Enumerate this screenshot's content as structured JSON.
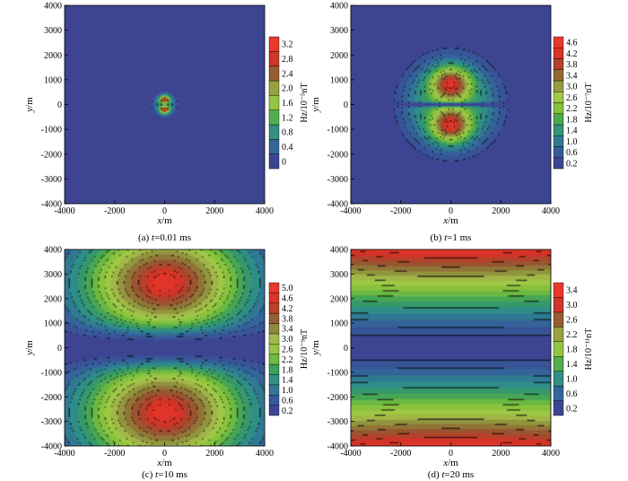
{
  "chart_data": [
    {
      "type": "heatmap",
      "panel": "a",
      "caption_prefix": "(a) ",
      "caption_var": "t",
      "caption_rest": "=0.01 ms",
      "xlabel_var": "x",
      "xlabel_unit": "/m",
      "ylabel_var": "y",
      "ylabel_unit": "/m",
      "xlim": [
        -4000,
        4000
      ],
      "ylim": [
        -4000,
        4000
      ],
      "xticks": [
        -4000,
        -2000,
        0,
        2000,
        4000
      ],
      "yticks": [
        -4000,
        -3000,
        -2000,
        -1000,
        0,
        1000,
        2000,
        3000,
        4000
      ],
      "colorbar_label": "Hz/10⁻⁵nT",
      "colorbar_ticks": [
        "0",
        "0.4",
        "0.8",
        "1.2",
        "1.6",
        "2.0",
        "2.4",
        "2.8",
        "3.2"
      ],
      "vmin": 0,
      "vmax": 3.4,
      "field": {
        "kind": "dipole",
        "scale": 300,
        "peak_y": 220,
        "amplitude": 3.4
      }
    },
    {
      "type": "heatmap",
      "panel": "b",
      "caption_prefix": "(b) ",
      "caption_var": "t",
      "caption_rest": "=1 ms",
      "xlabel_var": "x",
      "xlabel_unit": "/m",
      "ylabel_var": "y",
      "ylabel_unit": "/m",
      "xlim": [
        -4000,
        4000
      ],
      "ylim": [
        -4000,
        4000
      ],
      "xticks": [
        -4000,
        -2000,
        0,
        2000,
        4000
      ],
      "yticks": [
        -4000,
        -3000,
        -2000,
        -1000,
        0,
        1000,
        2000,
        3000,
        4000
      ],
      "colorbar_label": "Hz/10⁻⁷nT",
      "colorbar_ticks": [
        "0.2",
        "0.6",
        "1.0",
        "1.4",
        "1.8",
        "2.2",
        "2.6",
        "3.0",
        "3.4",
        "3.8",
        "4.2",
        "4.6"
      ],
      "vmin": 0,
      "vmax": 4.8,
      "field": {
        "kind": "dipole",
        "scale": 1300,
        "peak_y": 850,
        "amplitude": 4.8
      }
    },
    {
      "type": "heatmap",
      "panel": "c",
      "caption_prefix": "(c) ",
      "caption_var": "t",
      "caption_rest": "=10 ms",
      "xlabel_var": "x",
      "xlabel_unit": "/m",
      "ylabel_var": "y",
      "ylabel_unit": "/m",
      "xlim": [
        -4000,
        4000
      ],
      "ylim": [
        -4000,
        4000
      ],
      "xticks": [
        -4000,
        -2000,
        0,
        2000,
        4000
      ],
      "yticks": [
        -4000,
        -3000,
        -2000,
        -1000,
        0,
        1000,
        2000,
        3000,
        4000
      ],
      "colorbar_label": "Hz/10⁻⁹nT",
      "colorbar_ticks": [
        "0.2",
        "0.6",
        "1.0",
        "1.4",
        "1.8",
        "2.2",
        "2.6",
        "3.0",
        "3.4",
        "3.8",
        "4.2",
        "4.6",
        "5.0"
      ],
      "vmin": 0,
      "vmax": 5.2,
      "field": {
        "kind": "wide",
        "peak_y": 2650,
        "amplitude": 5.2
      }
    },
    {
      "type": "heatmap",
      "panel": "d",
      "caption_prefix": "(d) ",
      "caption_var": "t",
      "caption_rest": "=20 ms",
      "xlabel_var": "x",
      "xlabel_unit": "/m",
      "ylabel_var": "y",
      "ylabel_unit": "/m",
      "xlim": [
        -4000,
        4000
      ],
      "ylim": [
        -4000,
        4000
      ],
      "xticks": [
        -4000,
        -2000,
        0,
        2000,
        4000
      ],
      "yticks": [
        -4000,
        -3000,
        -2000,
        -1000,
        0,
        1000,
        2000,
        3000,
        4000
      ],
      "colorbar_label": "Hz/10⁻¹¹nT",
      "colorbar_ticks": [
        "0.2",
        "0.6",
        "1.0",
        "1.4",
        "1.8",
        "2.2",
        "2.6",
        "3.0",
        "3.4"
      ],
      "vmin": 0,
      "vmax": 3.6,
      "field": {
        "kind": "bands",
        "amplitude": 3.6
      }
    }
  ],
  "colormap": [
    "#3d4593",
    "#34619b",
    "#2e8a8e",
    "#3aa05a",
    "#7fc23a",
    "#a8c84a",
    "#8c8a3c",
    "#9a4e2e",
    "#d73227",
    "#e8392c"
  ]
}
